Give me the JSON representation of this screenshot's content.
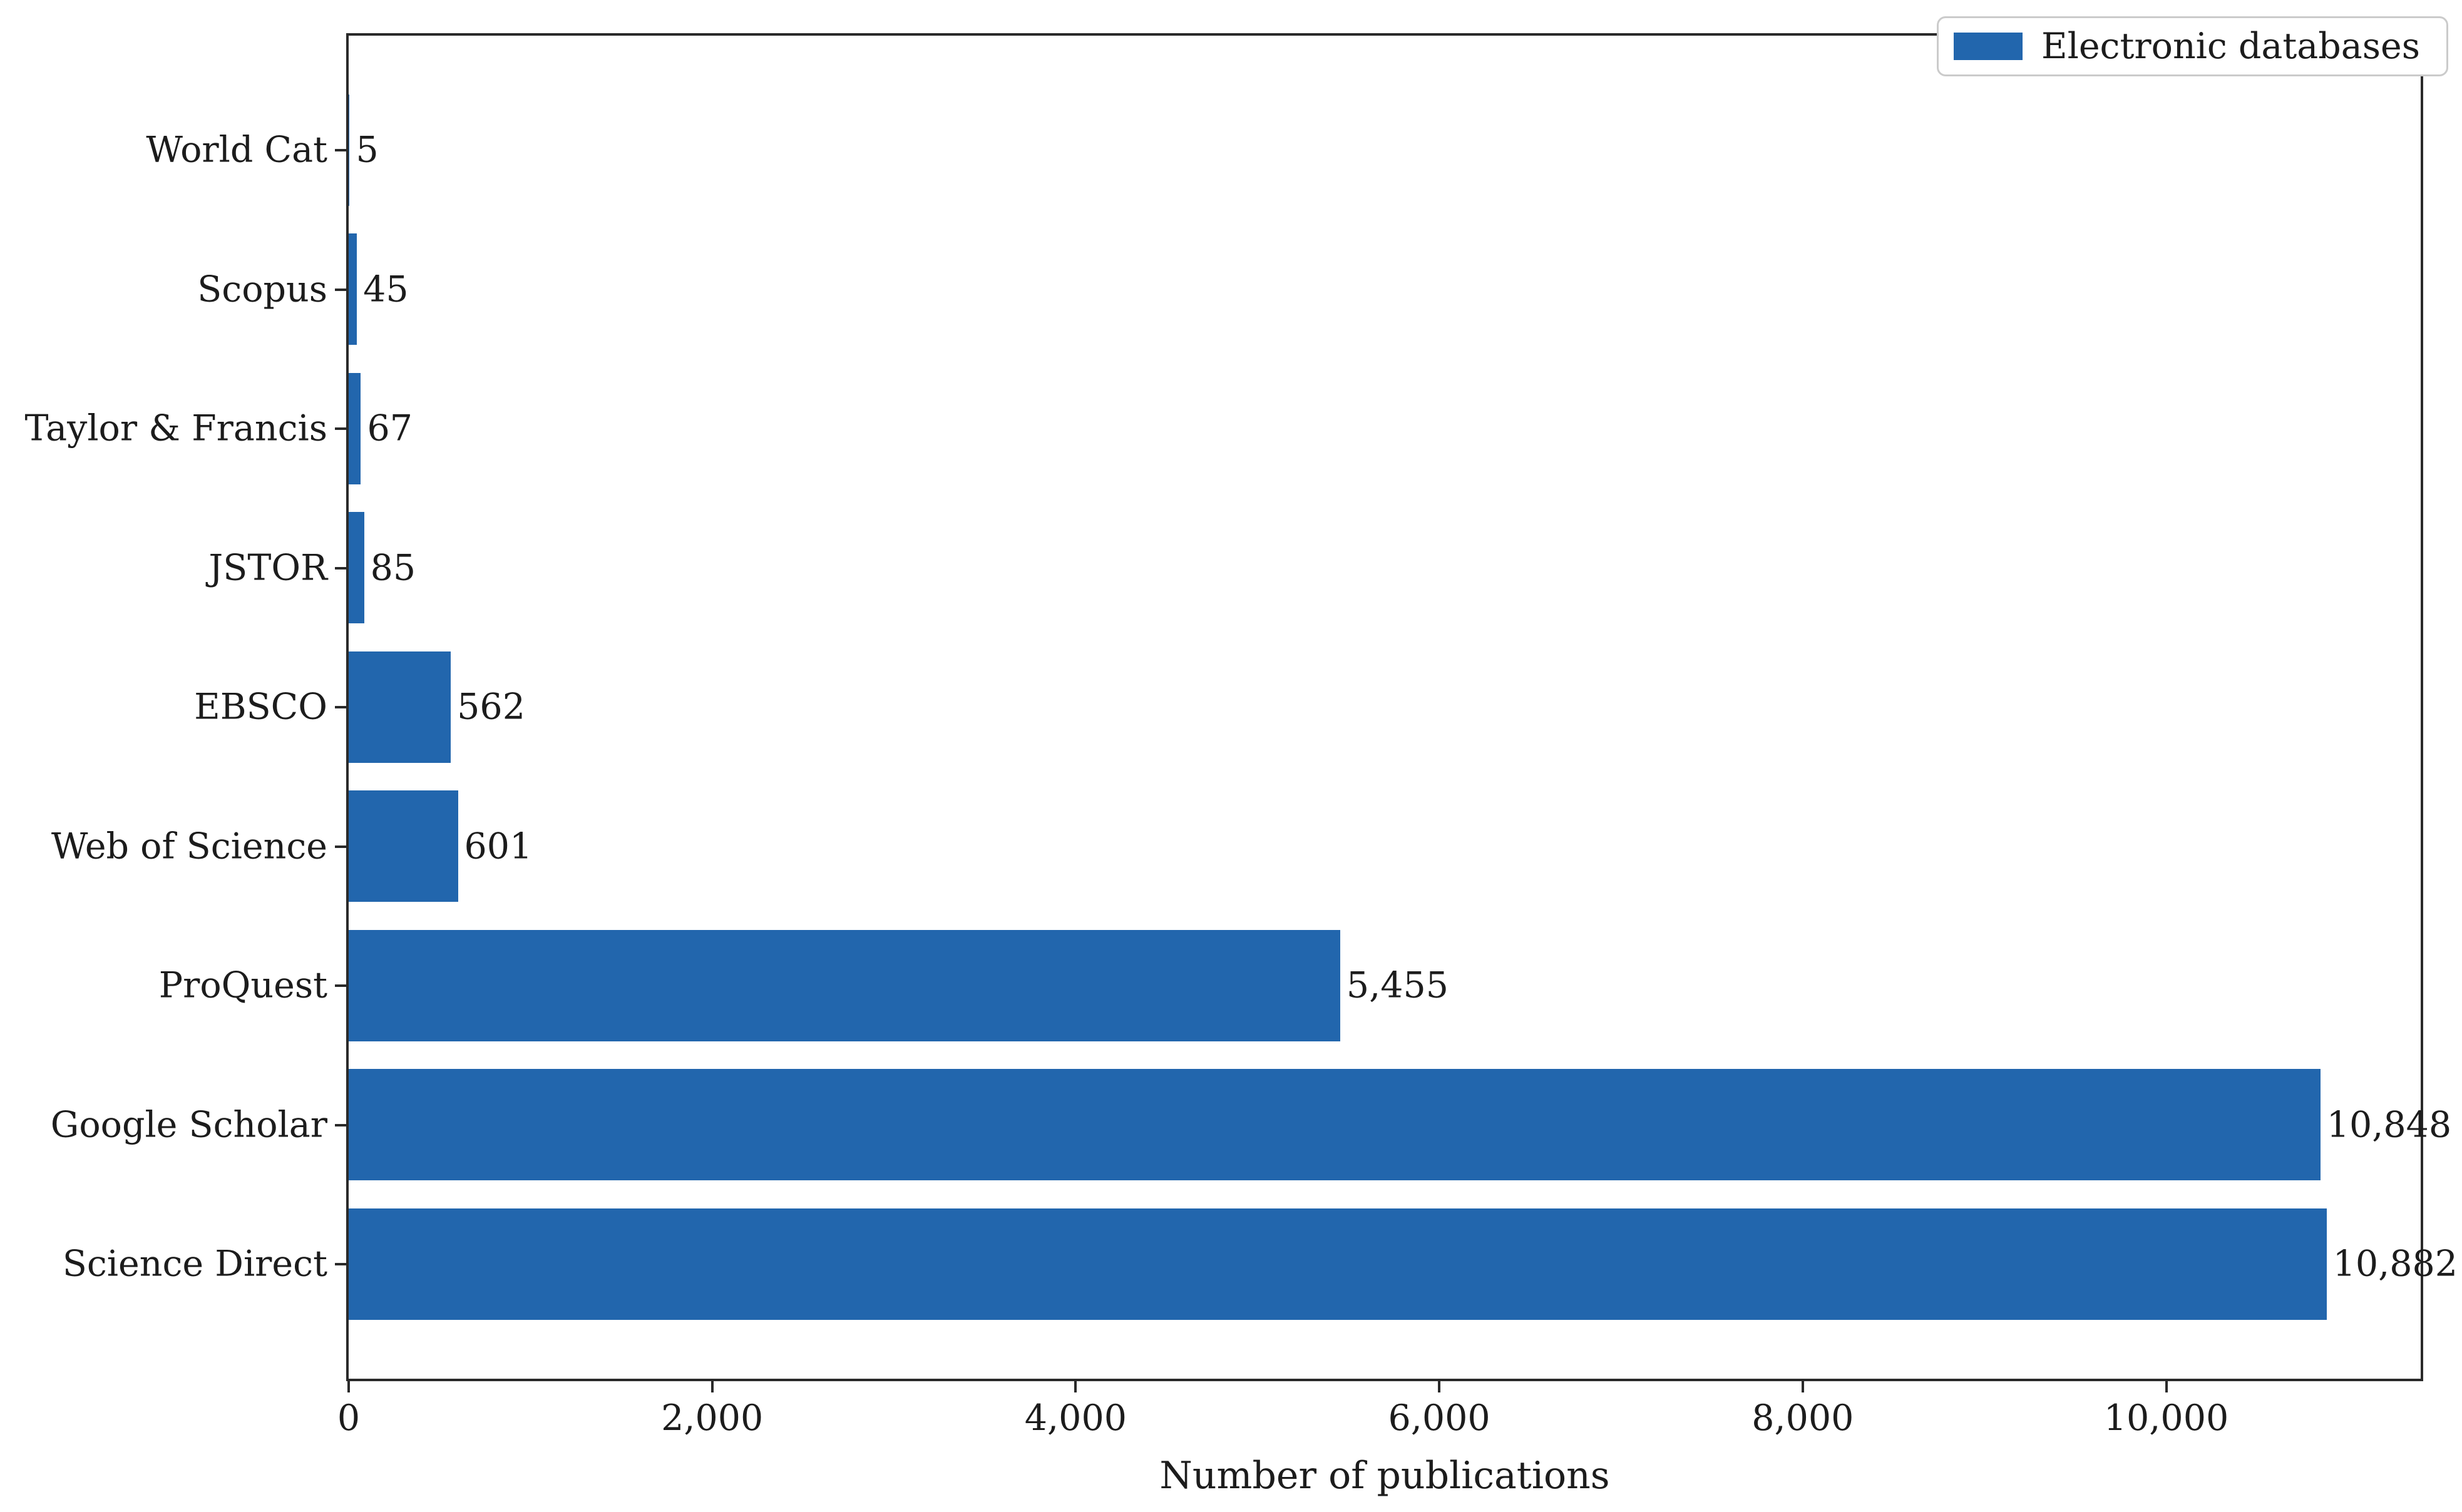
{
  "chart_data": {
    "type": "bar",
    "orientation": "horizontal",
    "title": "",
    "xlabel": "Number of publications",
    "ylabel": "",
    "categories_top_to_bottom": [
      "World Cat",
      "Scopus",
      "Taylor & Francis",
      "JSTOR",
      "EBSCO",
      "Web of Science",
      "ProQuest",
      "Google Scholar",
      "Science Direct"
    ],
    "values": [
      5,
      45,
      67,
      85,
      562,
      601,
      5455,
      10848,
      10882
    ],
    "value_labels": [
      "5",
      "45",
      "67",
      "85",
      "562",
      "601",
      "5,455",
      "10,848",
      "10,882"
    ],
    "x_ticks": [
      0,
      2000,
      4000,
      6000,
      8000,
      10000
    ],
    "x_tick_labels": [
      "0",
      "2,000",
      "4,000",
      "6,000",
      "8,000",
      "10,000"
    ],
    "xlim": [
      0,
      11400
    ],
    "grid": false,
    "legend_position": "upper right",
    "legend": [
      {
        "label": "Electronic databases",
        "color": "#2266ad"
      }
    ]
  },
  "colors": {
    "bar": "#2266ad",
    "text": "#1c1c1c",
    "spine": "#2a2a2a",
    "legend_border": "#cbcbcb",
    "background": "#ffffff"
  }
}
